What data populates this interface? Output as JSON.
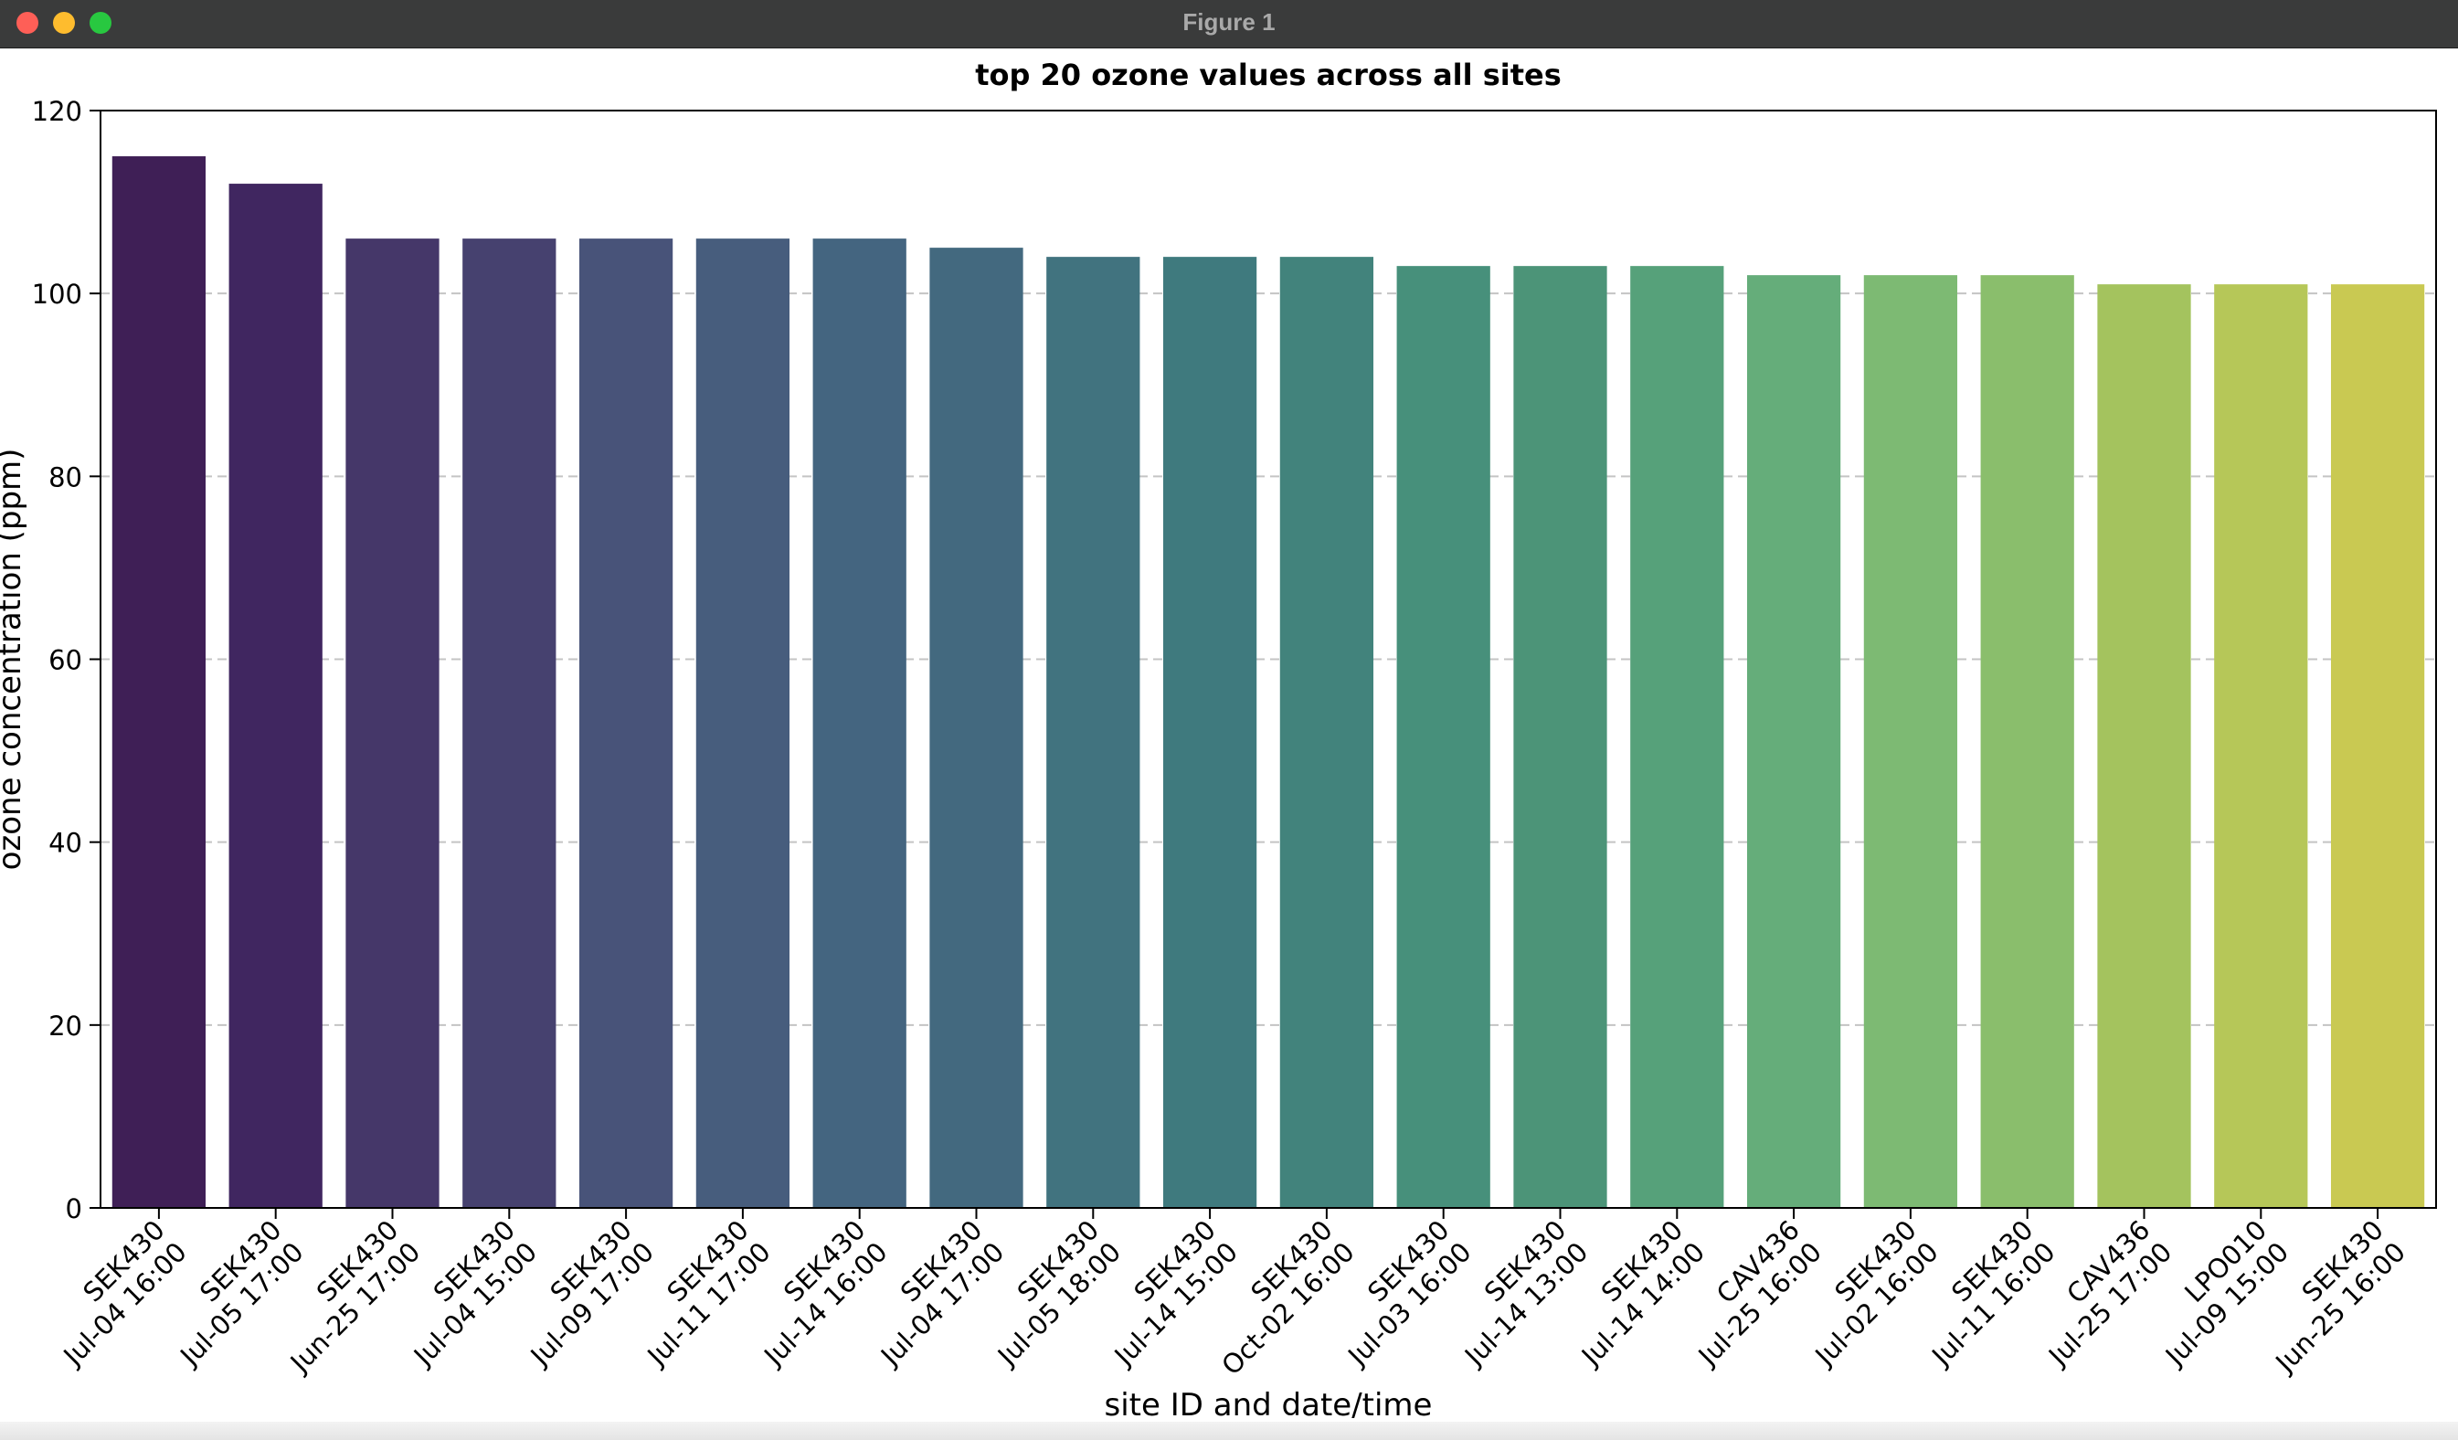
{
  "window": {
    "title": "Figure 1"
  },
  "chart_data": {
    "type": "bar",
    "title": "top 20 ozone values across all sites",
    "xlabel": "site ID and date/time",
    "ylabel": "ozone concentration (ppm)",
    "ylim": [
      0,
      120
    ],
    "yticks": [
      0,
      20,
      40,
      60,
      80,
      100,
      120
    ],
    "grid": "y dashed",
    "categories": [
      [
        "SEK430",
        "Jul-04 16:00"
      ],
      [
        "SEK430",
        "Jul-05 17:00"
      ],
      [
        "SEK430",
        "Jun-25 17:00"
      ],
      [
        "SEK430",
        "Jul-04 15:00"
      ],
      [
        "SEK430",
        "Jul-09 17:00"
      ],
      [
        "SEK430",
        "Jul-11 17:00"
      ],
      [
        "SEK430",
        "Jul-14 16:00"
      ],
      [
        "SEK430",
        "Jul-04 17:00"
      ],
      [
        "SEK430",
        "Jul-05 18:00"
      ],
      [
        "SEK430",
        "Jul-14 15:00"
      ],
      [
        "SEK430",
        "Oct-02 16:00"
      ],
      [
        "SEK430",
        "Jul-03 16:00"
      ],
      [
        "SEK430",
        "Jul-14 13:00"
      ],
      [
        "SEK430",
        "Jul-14 14:00"
      ],
      [
        "CAV436",
        "Jul-25 16:00"
      ],
      [
        "SEK430",
        "Jul-02 16:00"
      ],
      [
        "SEK430",
        "Jul-11 16:00"
      ],
      [
        "CAV436",
        "Jul-25 17:00"
      ],
      [
        "LPO010",
        "Jul-09 15:00"
      ],
      [
        "SEK430",
        "Jun-25 16:00"
      ]
    ],
    "values": [
      115,
      112,
      106,
      106,
      106,
      106,
      106,
      105,
      104,
      104,
      104,
      103,
      103,
      103,
      102,
      102,
      102,
      101,
      101,
      101
    ],
    "colors": [
      "#3f1f56",
      "#402660",
      "#453769",
      "#46416f",
      "#485379",
      "#475d7d",
      "#446580",
      "#43697f",
      "#41737f",
      "#3f7a7e",
      "#42837c",
      "#47907b",
      "#4c9478",
      "#56a17a",
      "#65ad7a",
      "#7dba73",
      "#8abe6c",
      "#a4c35e",
      "#b6c758",
      "#c9c952"
    ]
  }
}
